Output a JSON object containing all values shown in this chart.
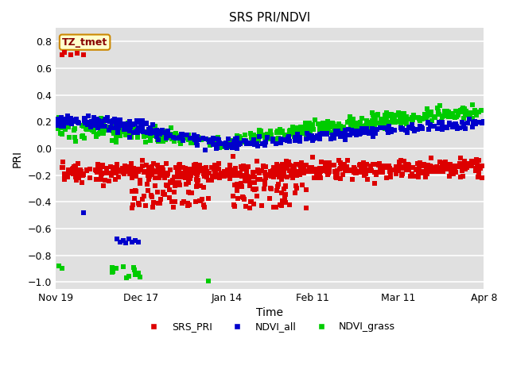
{
  "title": "SRS PRI/NDVI",
  "xlabel": "Time",
  "ylabel": "PRI",
  "ylim": [
    -1.05,
    0.9
  ],
  "xlim_days": [
    0,
    140
  ],
  "bg_color": "#e0e0e0",
  "fig_bg_color": "#ffffff",
  "grid_color": "#ffffff",
  "annotation_text": "TZ_tmet",
  "annotation_bg": "#ffffcc",
  "annotation_edge": "#cc8800",
  "annotation_text_color": "#880000",
  "legend_labels": [
    "SRS_PRI",
    "NDVI_all",
    "NDVI_grass"
  ],
  "colors": [
    "#dd0000",
    "#0000cc",
    "#00cc00"
  ],
  "marker_size": 5,
  "xtick_labels": [
    "Nov 19",
    "Dec 17",
    "Jan 14",
    "Feb 11",
    "Mar 11",
    "Apr 8"
  ],
  "xtick_days": [
    0,
    28,
    56,
    84,
    112,
    140
  ]
}
